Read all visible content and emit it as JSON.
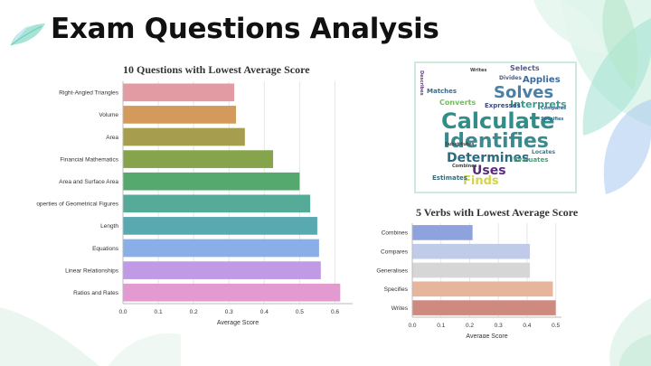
{
  "slide": {
    "title": "Exam Questions Analysis",
    "colors": {
      "leaf_green": "#9fdcb8",
      "leaf_teal": "#6fd3c4",
      "leaf_purple": "#8fb5e8",
      "accent": "#45c2a6"
    }
  },
  "questions_chart": {
    "chart_data": {
      "type": "bar",
      "orientation": "horizontal",
      "title": "10 Questions with Lowest Average Score",
      "xlabel": "Average Score",
      "ylabel": "",
      "xlim": [
        0,
        0.65
      ],
      "xticks": [
        "0.0",
        "0.1",
        "0.2",
        "0.3",
        "0.4",
        "0.5",
        "0.6"
      ],
      "grid": true,
      "categories": [
        "Right-Angled Triangles",
        "Volume",
        "Area",
        "Financial Mathematics",
        "Area and Surface Area",
        "Properties of Geometrical Figures",
        "Length",
        "Equations",
        "Linear Relationships",
        "Ratios and Rates"
      ],
      "values": [
        0.315,
        0.32,
        0.345,
        0.425,
        0.5,
        0.53,
        0.55,
        0.555,
        0.56,
        0.615
      ],
      "colors": [
        "#e29aa3",
        "#d49a5c",
        "#a79d4e",
        "#86a44c",
        "#55a96e",
        "#56aa98",
        "#58a9b0",
        "#8aaee8",
        "#c19ae6",
        "#e39ad0"
      ]
    }
  },
  "verbs_chart": {
    "chart_data": {
      "type": "bar",
      "orientation": "horizontal",
      "title": "5 Verbs with Lowest Average Score",
      "xlabel": "Average Score",
      "ylabel": "",
      "xlim": [
        0,
        0.52
      ],
      "xticks": [
        "0.0",
        "0.1",
        "0.2",
        "0.3",
        "0.4",
        "0.5"
      ],
      "grid": true,
      "categories": [
        "Combines",
        "Compares",
        "Generalises",
        "Specifies",
        "Writes"
      ],
      "values": [
        0.21,
        0.41,
        0.41,
        0.49,
        0.5
      ],
      "colors": [
        "#8ea2dd",
        "#bfcbe8",
        "#d6d6d6",
        "#e7b59b",
        "#cf8a80"
      ]
    }
  },
  "word_cloud": {
    "words": [
      {
        "text": "Calculate",
        "color": "#2f8e8a"
      },
      {
        "text": "Identifies",
        "color": "#3b8a8f"
      },
      {
        "text": "Solves",
        "color": "#4a7fa6"
      },
      {
        "text": "Determines",
        "color": "#2c6b7f"
      },
      {
        "text": "Uses",
        "color": "#5a2a80"
      },
      {
        "text": "Finds",
        "color": "#d4d44a"
      },
      {
        "text": "Interprets",
        "color": "#3a9c8e"
      },
      {
        "text": "Applies",
        "color": "#3b6b9a"
      },
      {
        "text": "Selects",
        "color": "#555c8f"
      },
      {
        "text": "Estimates",
        "color": "#2f6e86"
      },
      {
        "text": "Evaluates",
        "color": "#4a9c7a"
      },
      {
        "text": "Converts",
        "color": "#6fbf5a"
      },
      {
        "text": "Expresses",
        "color": "#3c4b86"
      },
      {
        "text": "Matches",
        "color": "#3b6b8a"
      },
      {
        "text": "Divides",
        "color": "#4a5f8a"
      },
      {
        "text": "Locates",
        "color": "#3b7b8a"
      },
      {
        "text": "Describes",
        "color": "#6a3a8a"
      },
      {
        "text": "Combines",
        "color": "#444444"
      },
      {
        "text": "Compares",
        "color": "#3b5b8a"
      },
      {
        "text": "Writes",
        "color": "#444444"
      },
      {
        "text": "Specifies",
        "color": "#3a6a8a"
      },
      {
        "text": "Substitutes",
        "color": "#444444"
      }
    ]
  }
}
